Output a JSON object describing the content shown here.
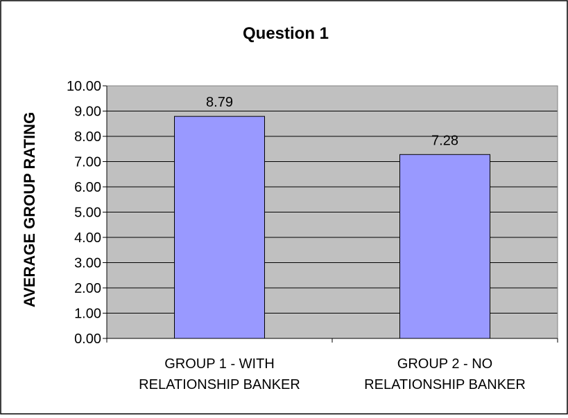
{
  "chart_data": {
    "type": "bar",
    "title": "Question 1",
    "xlabel": "",
    "ylabel": "AVERAGE GROUP RATING",
    "categories": [
      [
        "GROUP 1 - WITH",
        "RELATIONSHIP BANKER"
      ],
      [
        "GROUP 2 - NO",
        "RELATIONSHIP BANKER"
      ]
    ],
    "values": [
      8.79,
      7.28
    ],
    "data_labels": [
      "8.79",
      "7.28"
    ],
    "ylim": [
      0,
      10
    ],
    "ytick_step": 1,
    "ytick_labels": [
      "0.00",
      "1.00",
      "2.00",
      "3.00",
      "4.00",
      "5.00",
      "6.00",
      "7.00",
      "8.00",
      "9.00",
      "10.00"
    ],
    "grid": true,
    "legend": "none",
    "colors": {
      "bar_fill": "#9999ff",
      "bar_stroke": "#000000",
      "plot_background": "#c0c0c0",
      "gridline": "#000000",
      "frame": "#000000"
    }
  }
}
